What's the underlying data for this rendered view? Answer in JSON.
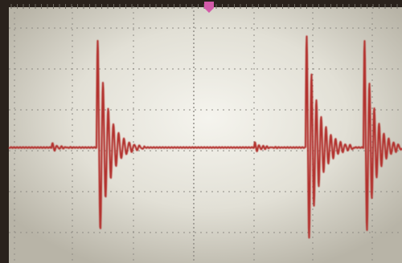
{
  "scope": {
    "background_color": "#d9d6c8",
    "glare_color": "#f3f2ea",
    "bezel_color": "#2a221c",
    "grid_color": "#8f8c85",
    "trace_color": "#b3322e",
    "trigger_marker_color": "#d25aa8"
  }
}
